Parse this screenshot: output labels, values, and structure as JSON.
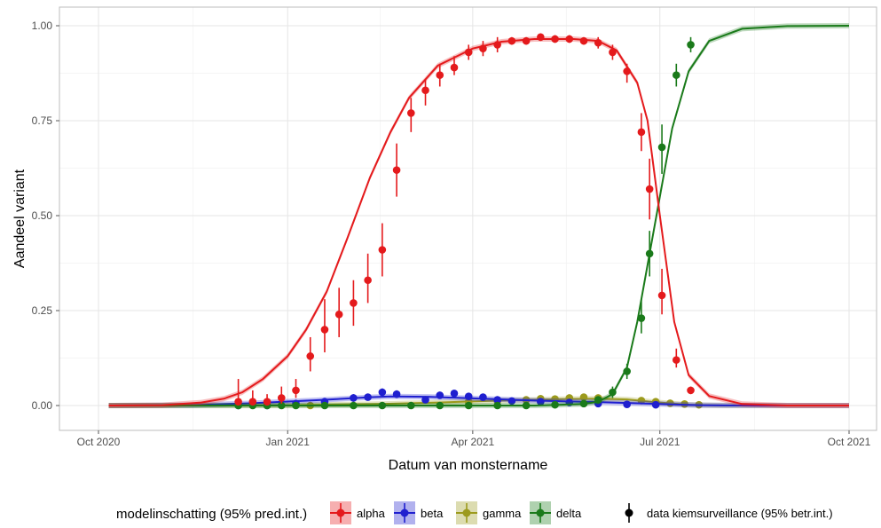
{
  "chart_data": {
    "type": "scatter",
    "title": "",
    "xlabel": "Datum van monstername",
    "ylabel": "Aandeel variant",
    "x_domain": [
      "2020-10-01",
      "2021-10-01"
    ],
    "ylim": [
      0,
      1
    ],
    "x_ticks": [
      {
        "date": "2020-10-01",
        "label": "Oct 2020"
      },
      {
        "date": "2021-01-01",
        "label": "Jan 2021"
      },
      {
        "date": "2021-04-01",
        "label": "Apr 2021"
      },
      {
        "date": "2021-07-01",
        "label": "Jul 2021"
      },
      {
        "date": "2021-10-01",
        "label": "Oct 2021"
      }
    ],
    "y_ticks": [
      {
        "value": 0,
        "label": "0.00"
      },
      {
        "value": 0.25,
        "label": "0.25"
      },
      {
        "value": 0.5,
        "label": "0.50"
      },
      {
        "value": 0.75,
        "label": "0.75"
      },
      {
        "value": 1,
        "label": "1.00"
      }
    ],
    "grid": true,
    "legend": {
      "placement": "bottom",
      "model_title": "modelinschatting (95% pred.int.)",
      "data_label": "data kiemsurveillance (95% betr.int.)"
    },
    "series": [
      {
        "name": "alpha",
        "color": "#e41a1c",
        "model": [
          [
            "2020-10-06",
            0
          ],
          [
            "2020-11-01",
            0.001
          ],
          [
            "2020-11-20",
            0.008
          ],
          [
            "2020-12-01",
            0.018
          ],
          [
            "2020-12-10",
            0.035
          ],
          [
            "2020-12-20",
            0.07
          ],
          [
            "2021-01-01",
            0.13
          ],
          [
            "2021-01-10",
            0.2
          ],
          [
            "2021-01-20",
            0.3
          ],
          [
            "2021-01-30",
            0.44
          ],
          [
            "2021-02-10",
            0.6
          ],
          [
            "2021-02-20",
            0.72
          ],
          [
            "2021-03-01",
            0.81
          ],
          [
            "2021-03-15",
            0.895
          ],
          [
            "2021-04-01",
            0.94
          ],
          [
            "2021-04-15",
            0.958
          ],
          [
            "2021-05-01",
            0.965
          ],
          [
            "2021-05-20",
            0.965
          ],
          [
            "2021-06-01",
            0.96
          ],
          [
            "2021-06-10",
            0.935
          ],
          [
            "2021-06-20",
            0.85
          ],
          [
            "2021-06-25",
            0.75
          ],
          [
            "2021-07-01",
            0.5
          ],
          [
            "2021-07-08",
            0.22
          ],
          [
            "2021-07-15",
            0.08
          ],
          [
            "2021-07-25",
            0.025
          ],
          [
            "2021-08-10",
            0.004
          ],
          [
            "2021-09-01",
            0
          ],
          [
            "2021-10-01",
            0
          ]
        ],
        "points": [
          {
            "date": "2020-12-08",
            "y": 0.01,
            "lo": 0,
            "hi": 0.07
          },
          {
            "date": "2020-12-15",
            "y": 0.01,
            "lo": 0,
            "hi": 0.04
          },
          {
            "date": "2020-12-22",
            "y": 0.01,
            "lo": 0,
            "hi": 0.03
          },
          {
            "date": "2020-12-29",
            "y": 0.02,
            "lo": 0.005,
            "hi": 0.05
          },
          {
            "date": "2021-01-05",
            "y": 0.04,
            "lo": 0.02,
            "hi": 0.07
          },
          {
            "date": "2021-01-12",
            "y": 0.13,
            "lo": 0.09,
            "hi": 0.18
          },
          {
            "date": "2021-01-19",
            "y": 0.2,
            "lo": 0.14,
            "hi": 0.28
          },
          {
            "date": "2021-01-26",
            "y": 0.24,
            "lo": 0.18,
            "hi": 0.31
          },
          {
            "date": "2021-02-02",
            "y": 0.27,
            "lo": 0.21,
            "hi": 0.33
          },
          {
            "date": "2021-02-09",
            "y": 0.33,
            "lo": 0.27,
            "hi": 0.4
          },
          {
            "date": "2021-02-16",
            "y": 0.41,
            "lo": 0.34,
            "hi": 0.48
          },
          {
            "date": "2021-02-23",
            "y": 0.62,
            "lo": 0.55,
            "hi": 0.69
          },
          {
            "date": "2021-03-02",
            "y": 0.77,
            "lo": 0.72,
            "hi": 0.81
          },
          {
            "date": "2021-03-09",
            "y": 0.83,
            "lo": 0.79,
            "hi": 0.86
          },
          {
            "date": "2021-03-16",
            "y": 0.87,
            "lo": 0.84,
            "hi": 0.9
          },
          {
            "date": "2021-03-23",
            "y": 0.89,
            "lo": 0.87,
            "hi": 0.92
          },
          {
            "date": "2021-03-30",
            "y": 0.93,
            "lo": 0.91,
            "hi": 0.95
          },
          {
            "date": "2021-04-06",
            "y": 0.94,
            "lo": 0.92,
            "hi": 0.96
          },
          {
            "date": "2021-04-13",
            "y": 0.95,
            "lo": 0.93,
            "hi": 0.97
          },
          {
            "date": "2021-04-20",
            "y": 0.96,
            "lo": 0.95,
            "hi": 0.97
          },
          {
            "date": "2021-04-27",
            "y": 0.96,
            "lo": 0.95,
            "hi": 0.97
          },
          {
            "date": "2021-05-04",
            "y": 0.97,
            "lo": 0.96,
            "hi": 0.98
          },
          {
            "date": "2021-05-11",
            "y": 0.965,
            "lo": 0.955,
            "hi": 0.975
          },
          {
            "date": "2021-05-18",
            "y": 0.965,
            "lo": 0.955,
            "hi": 0.975
          },
          {
            "date": "2021-05-25",
            "y": 0.96,
            "lo": 0.95,
            "hi": 0.97
          },
          {
            "date": "2021-06-01",
            "y": 0.955,
            "lo": 0.94,
            "hi": 0.97
          },
          {
            "date": "2021-06-08",
            "y": 0.93,
            "lo": 0.91,
            "hi": 0.95
          },
          {
            "date": "2021-06-15",
            "y": 0.88,
            "lo": 0.85,
            "hi": 0.9
          },
          {
            "date": "2021-06-22",
            "y": 0.72,
            "lo": 0.67,
            "hi": 0.77
          },
          {
            "date": "2021-06-26",
            "y": 0.57,
            "lo": 0.49,
            "hi": 0.65
          },
          {
            "date": "2021-07-02",
            "y": 0.29,
            "lo": 0.24,
            "hi": 0.36
          },
          {
            "date": "2021-07-09",
            "y": 0.12,
            "lo": 0.1,
            "hi": 0.15
          },
          {
            "date": "2021-07-16",
            "y": 0.04,
            "lo": 0.03,
            "hi": 0.05
          }
        ]
      },
      {
        "name": "beta",
        "color": "#1f1fcf",
        "model": [
          [
            "2020-10-06",
            0
          ],
          [
            "2020-11-15",
            0.001
          ],
          [
            "2020-12-15",
            0.006
          ],
          [
            "2021-01-15",
            0.014
          ],
          [
            "2021-02-10",
            0.022
          ],
          [
            "2021-02-20",
            0.024
          ],
          [
            "2021-03-10",
            0.023
          ],
          [
            "2021-04-01",
            0.019
          ],
          [
            "2021-05-01",
            0.013
          ],
          [
            "2021-06-01",
            0.009
          ],
          [
            "2021-07-01",
            0.004
          ],
          [
            "2021-07-20",
            0.001
          ],
          [
            "2021-08-15",
            0
          ],
          [
            "2021-10-01",
            0
          ]
        ],
        "points": [
          {
            "date": "2020-12-08",
            "y": 0,
            "lo": 0,
            "hi": 0.01
          },
          {
            "date": "2020-12-22",
            "y": 0,
            "lo": 0,
            "hi": 0.01
          },
          {
            "date": "2021-01-05",
            "y": 0.005,
            "lo": 0,
            "hi": 0.015
          },
          {
            "date": "2021-01-19",
            "y": 0.01,
            "lo": 0,
            "hi": 0.02
          },
          {
            "date": "2021-02-02",
            "y": 0.02,
            "lo": 0.01,
            "hi": 0.03
          },
          {
            "date": "2021-02-09",
            "y": 0.022,
            "lo": 0.015,
            "hi": 0.03
          },
          {
            "date": "2021-02-16",
            "y": 0.035,
            "lo": 0.025,
            "hi": 0.045
          },
          {
            "date": "2021-02-23",
            "y": 0.03,
            "lo": 0.02,
            "hi": 0.04
          },
          {
            "date": "2021-03-09",
            "y": 0.015,
            "lo": 0.01,
            "hi": 0.02
          },
          {
            "date": "2021-03-16",
            "y": 0.027,
            "lo": 0.02,
            "hi": 0.035
          },
          {
            "date": "2021-03-23",
            "y": 0.032,
            "lo": 0.025,
            "hi": 0.04
          },
          {
            "date": "2021-03-30",
            "y": 0.024,
            "lo": 0.018,
            "hi": 0.03
          },
          {
            "date": "2021-04-06",
            "y": 0.022,
            "lo": 0.016,
            "hi": 0.028
          },
          {
            "date": "2021-04-13",
            "y": 0.015,
            "lo": 0.01,
            "hi": 0.02
          },
          {
            "date": "2021-04-20",
            "y": 0.012,
            "lo": 0.008,
            "hi": 0.016
          },
          {
            "date": "2021-05-04",
            "y": 0.01,
            "lo": 0.005,
            "hi": 0.015
          },
          {
            "date": "2021-05-18",
            "y": 0.008,
            "lo": 0.004,
            "hi": 0.012
          },
          {
            "date": "2021-06-01",
            "y": 0.005,
            "lo": 0.002,
            "hi": 0.008
          },
          {
            "date": "2021-06-15",
            "y": 0.003,
            "lo": 0,
            "hi": 0.006
          },
          {
            "date": "2021-06-29",
            "y": 0.002,
            "lo": 0,
            "hi": 0.005
          }
        ]
      },
      {
        "name": "gamma",
        "color": "#9c9a1c",
        "model": [
          [
            "2020-10-06",
            0
          ],
          [
            "2021-01-01",
            0.001
          ],
          [
            "2021-02-15",
            0.004
          ],
          [
            "2021-03-15",
            0.008
          ],
          [
            "2021-04-15",
            0.013
          ],
          [
            "2021-05-15",
            0.017
          ],
          [
            "2021-06-01",
            0.018
          ],
          [
            "2021-06-15",
            0.016
          ],
          [
            "2021-07-01",
            0.008
          ],
          [
            "2021-07-15",
            0.002
          ],
          [
            "2021-08-01",
            0
          ],
          [
            "2021-10-01",
            0
          ]
        ],
        "points": [
          {
            "date": "2021-01-12",
            "y": 0,
            "lo": 0,
            "hi": 0.005
          },
          {
            "date": "2021-03-30",
            "y": 0.01,
            "lo": 0.005,
            "hi": 0.015
          },
          {
            "date": "2021-04-13",
            "y": 0.012,
            "lo": 0.007,
            "hi": 0.017
          },
          {
            "date": "2021-04-27",
            "y": 0.015,
            "lo": 0.01,
            "hi": 0.02
          },
          {
            "date": "2021-05-04",
            "y": 0.018,
            "lo": 0.012,
            "hi": 0.024
          },
          {
            "date": "2021-05-11",
            "y": 0.017,
            "lo": 0.011,
            "hi": 0.023
          },
          {
            "date": "2021-05-18",
            "y": 0.02,
            "lo": 0.014,
            "hi": 0.026
          },
          {
            "date": "2021-05-25",
            "y": 0.022,
            "lo": 0.016,
            "hi": 0.028
          },
          {
            "date": "2021-06-01",
            "y": 0.02,
            "lo": 0.014,
            "hi": 0.026
          },
          {
            "date": "2021-06-22",
            "y": 0.013,
            "lo": 0.008,
            "hi": 0.018
          },
          {
            "date": "2021-06-29",
            "y": 0.01,
            "lo": 0.005,
            "hi": 0.015
          },
          {
            "date": "2021-07-06",
            "y": 0.006,
            "lo": 0.002,
            "hi": 0.01
          },
          {
            "date": "2021-07-13",
            "y": 0.004,
            "lo": 0,
            "hi": 0.008
          },
          {
            "date": "2021-07-20",
            "y": 0.002,
            "lo": 0,
            "hi": 0.005
          }
        ]
      },
      {
        "name": "delta",
        "color": "#1a7a1a",
        "model": [
          [
            "2020-10-06",
            0
          ],
          [
            "2021-05-01",
            0
          ],
          [
            "2021-05-25",
            0.004
          ],
          [
            "2021-06-01",
            0.01
          ],
          [
            "2021-06-08",
            0.03
          ],
          [
            "2021-06-15",
            0.1
          ],
          [
            "2021-06-20",
            0.22
          ],
          [
            "2021-06-25",
            0.37
          ],
          [
            "2021-07-01",
            0.55
          ],
          [
            "2021-07-07",
            0.73
          ],
          [
            "2021-07-15",
            0.88
          ],
          [
            "2021-07-25",
            0.96
          ],
          [
            "2021-08-10",
            0.992
          ],
          [
            "2021-09-01",
            0.999
          ],
          [
            "2021-10-01",
            1
          ]
        ],
        "points": [
          {
            "date": "2020-12-08",
            "y": 0,
            "lo": 0,
            "hi": 0.005
          },
          {
            "date": "2020-12-15",
            "y": 0,
            "lo": 0,
            "hi": 0.005
          },
          {
            "date": "2020-12-22",
            "y": 0,
            "lo": 0,
            "hi": 0.005
          },
          {
            "date": "2020-12-29",
            "y": 0,
            "lo": 0,
            "hi": 0.005
          },
          {
            "date": "2021-01-05",
            "y": 0,
            "lo": 0,
            "hi": 0.005
          },
          {
            "date": "2021-01-19",
            "y": 0,
            "lo": 0,
            "hi": 0.005
          },
          {
            "date": "2021-02-02",
            "y": 0,
            "lo": 0,
            "hi": 0.005
          },
          {
            "date": "2021-02-16",
            "y": 0,
            "lo": 0,
            "hi": 0.005
          },
          {
            "date": "2021-03-02",
            "y": 0,
            "lo": 0,
            "hi": 0.005
          },
          {
            "date": "2021-03-16",
            "y": 0,
            "lo": 0,
            "hi": 0.005
          },
          {
            "date": "2021-03-30",
            "y": 0,
            "lo": 0,
            "hi": 0.005
          },
          {
            "date": "2021-04-13",
            "y": 0,
            "lo": 0,
            "hi": 0.005
          },
          {
            "date": "2021-04-27",
            "y": 0,
            "lo": 0,
            "hi": 0.005
          },
          {
            "date": "2021-05-11",
            "y": 0.002,
            "lo": 0,
            "hi": 0.006
          },
          {
            "date": "2021-05-25",
            "y": 0.005,
            "lo": 0.002,
            "hi": 0.01
          },
          {
            "date": "2021-06-01",
            "y": 0.015,
            "lo": 0.008,
            "hi": 0.022
          },
          {
            "date": "2021-06-08",
            "y": 0.035,
            "lo": 0.02,
            "hi": 0.05
          },
          {
            "date": "2021-06-15",
            "y": 0.09,
            "lo": 0.07,
            "hi": 0.11
          },
          {
            "date": "2021-06-22",
            "y": 0.23,
            "lo": 0.19,
            "hi": 0.28
          },
          {
            "date": "2021-06-26",
            "y": 0.4,
            "lo": 0.34,
            "hi": 0.46
          },
          {
            "date": "2021-07-02",
            "y": 0.68,
            "lo": 0.61,
            "hi": 0.74
          },
          {
            "date": "2021-07-09",
            "y": 0.87,
            "lo": 0.84,
            "hi": 0.9
          },
          {
            "date": "2021-07-16",
            "y": 0.95,
            "lo": 0.93,
            "hi": 0.97
          }
        ]
      }
    ]
  }
}
